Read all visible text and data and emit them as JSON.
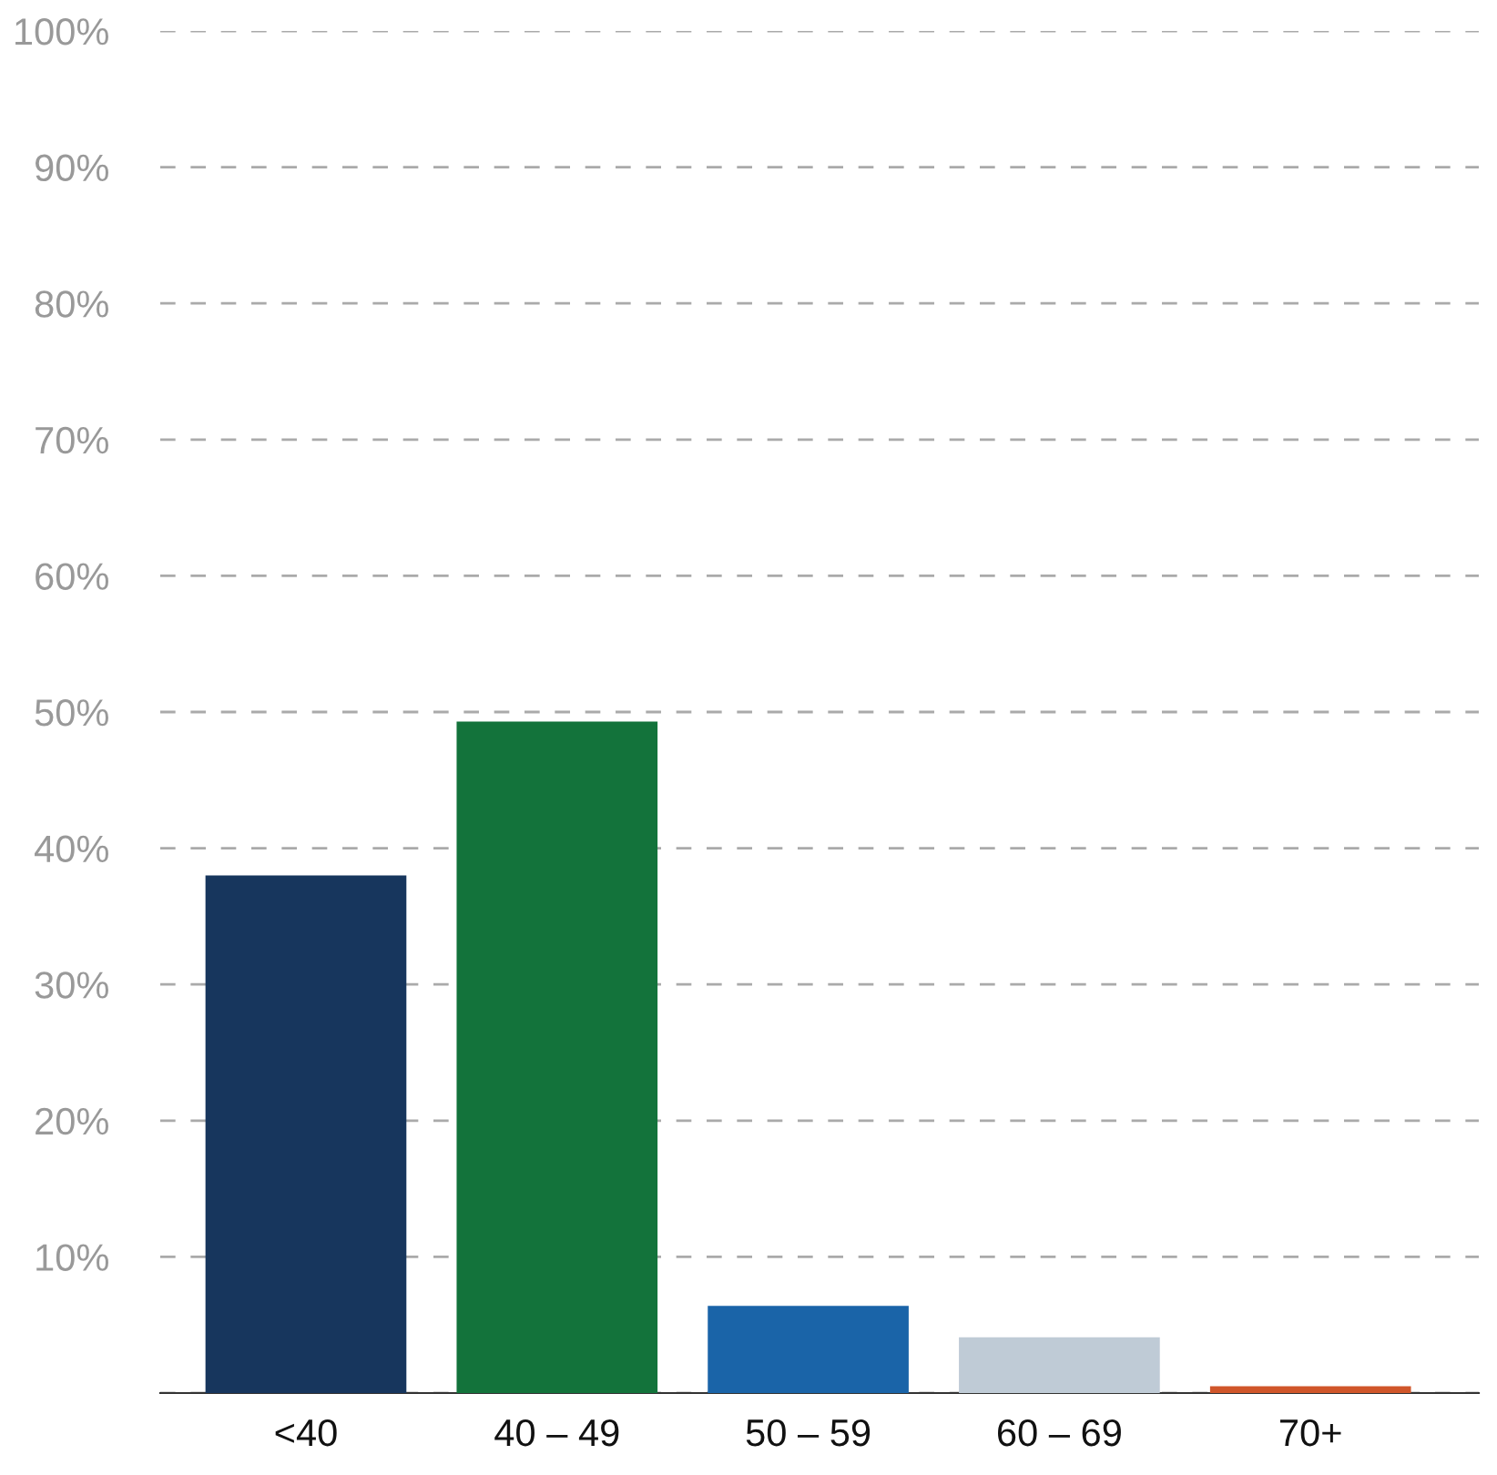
{
  "chart_data": {
    "type": "bar",
    "categories": [
      "<40",
      "40 – 49",
      "50 – 59",
      "60 – 69",
      "70+"
    ],
    "values": [
      38,
      49.3,
      6.4,
      4.1,
      0.5
    ],
    "colors": [
      "#17365d",
      "#13733b",
      "#1a64a8",
      "#bfcbd6",
      "#d0562a"
    ],
    "ylim": [
      0,
      100
    ],
    "yticks": [
      {
        "value": 0,
        "label": null
      },
      {
        "value": 10,
        "label": "10%"
      },
      {
        "value": 20,
        "label": "20%"
      },
      {
        "value": 30,
        "label": "30%"
      },
      {
        "value": 40,
        "label": "40%"
      },
      {
        "value": 50,
        "label": "50%"
      },
      {
        "value": 60,
        "label": "60%"
      },
      {
        "value": 70,
        "label": "70%"
      },
      {
        "value": 80,
        "label": "80%"
      },
      {
        "value": 90,
        "label": "90%"
      },
      {
        "value": 100,
        "label": "100%"
      }
    ],
    "grid": "y",
    "legend": false
  }
}
